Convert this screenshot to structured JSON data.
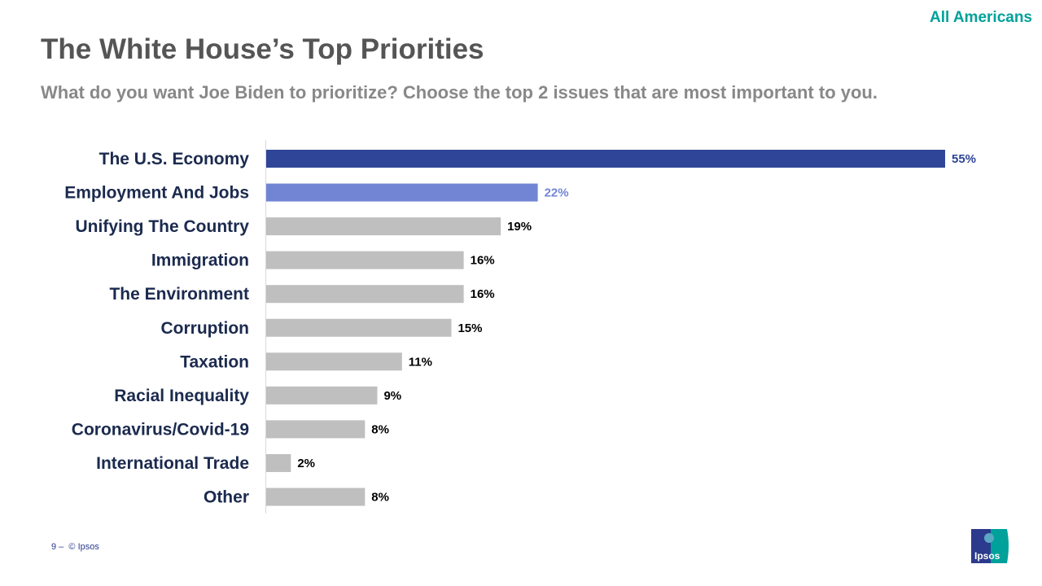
{
  "header": {
    "audience": "All Americans",
    "title": "The White House’s Top Priorities",
    "subtitle": "What do you want Joe Biden to prioritize? Choose the top 2 issues that are most important to you."
  },
  "footer": {
    "page": "9 –",
    "copyright": "© Ipsos"
  },
  "logo": {
    "text": "Ipsos",
    "colors": [
      "#2b3a8c",
      "#00a19a"
    ]
  },
  "colors": {
    "highlight1": "#2e4598",
    "highlight2": "#7285d4",
    "default": "#bfbfbf",
    "label": "#1b2a4e"
  },
  "chart_data": {
    "type": "bar",
    "orientation": "horizontal",
    "categories": [
      "The U.S. Economy",
      "Employment And Jobs",
      "Unifying The Country",
      "Immigration",
      "The Environment",
      "Corruption",
      "Taxation",
      "Racial Inequality",
      "Coronavirus/Covid-19",
      "International Trade",
      "Other"
    ],
    "values": [
      55,
      22,
      19,
      16,
      16,
      15,
      11,
      9,
      8,
      2,
      8
    ],
    "data_labels": [
      "55%",
      "22%",
      "19%",
      "16%",
      "16%",
      "15%",
      "11%",
      "9%",
      "8%",
      "2%",
      "8%"
    ],
    "unit": "%",
    "xlim": [
      0,
      55
    ],
    "grid": false,
    "legend": "none"
  }
}
